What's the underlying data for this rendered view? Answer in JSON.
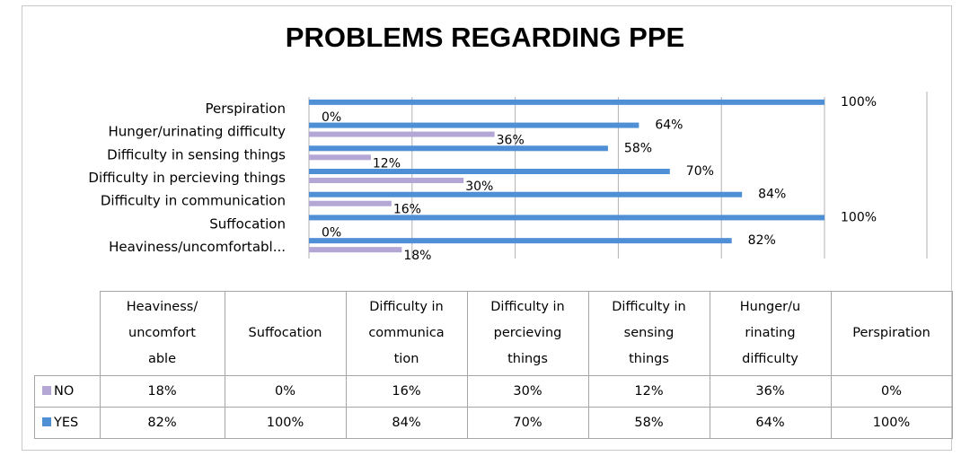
{
  "chart_data": {
    "type": "bar",
    "orientation": "horizontal",
    "title": "PROBLEMS REGARDING PPE",
    "categories": [
      "Heaviness/uncomfortabl...",
      "Suffocation",
      "Difficulty in communication",
      "Difficulty in percieving things",
      "Difficulty in sensing things",
      "Hunger/urinating difficulty",
      "Perspiration"
    ],
    "series": [
      {
        "name": "NO",
        "color": "#b4a7d6",
        "values": [
          18,
          0,
          16,
          30,
          12,
          36,
          0
        ],
        "labels": [
          "18%",
          "0%",
          "16%",
          "30%",
          "12%",
          "36%",
          "0%"
        ]
      },
      {
        "name": "YES",
        "color": "#4f8fd5",
        "values": [
          82,
          100,
          84,
          70,
          58,
          64,
          100
        ],
        "labels": [
          "82%",
          "100%",
          "84%",
          "70%",
          "58%",
          "64%",
          "100%"
        ]
      }
    ],
    "xlim": [
      0,
      100
    ],
    "grid": true,
    "legend": "data-table"
  },
  "table": {
    "headers": [
      [
        "Heaviness/",
        "uncomfort",
        "able"
      ],
      [
        "Suffocation"
      ],
      [
        "Difficulty in",
        "communica",
        "tion"
      ],
      [
        "Difficulty in",
        "percieving",
        "things"
      ],
      [
        "Difficulty in",
        "sensing",
        "things"
      ],
      [
        "Hunger/u",
        "rinating",
        "difficulty"
      ],
      [
        "Perspiration"
      ]
    ],
    "rows": [
      {
        "name": "NO",
        "color": "#b4a7d6",
        "cells": [
          "18%",
          "0%",
          "16%",
          "30%",
          "12%",
          "36%",
          "0%"
        ]
      },
      {
        "name": "YES",
        "color": "#4f8fd5",
        "cells": [
          "82%",
          "100%",
          "84%",
          "70%",
          "58%",
          "64%",
          "100%"
        ]
      }
    ]
  }
}
